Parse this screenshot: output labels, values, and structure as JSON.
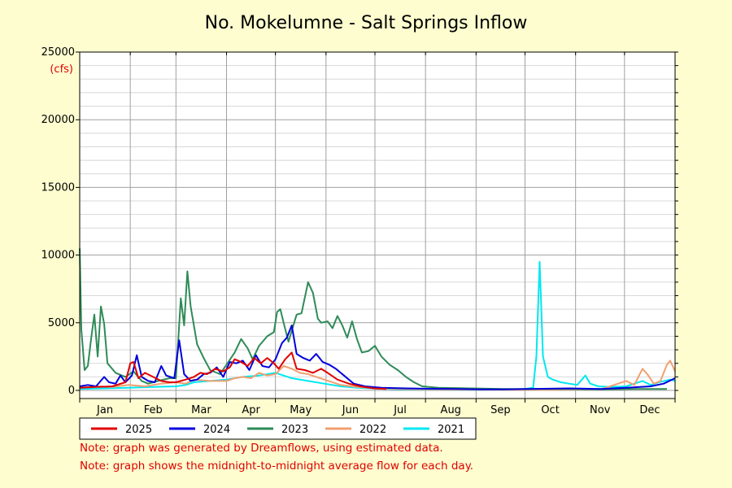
{
  "chart_data": {
    "type": "line",
    "title": "No. Mokelumne - Salt Springs Inflow",
    "ylabel": "(cfs)",
    "xlabel": "",
    "ylim": [
      0,
      25000
    ],
    "xlim": [
      0,
      365
    ],
    "yticks": [
      0,
      5000,
      10000,
      15000,
      20000,
      25000
    ],
    "months": [
      {
        "label": "Jan",
        "start": 0
      },
      {
        "label": "Feb",
        "start": 31
      },
      {
        "label": "Mar",
        "start": 59
      },
      {
        "label": "Apr",
        "start": 90
      },
      {
        "label": "May",
        "start": 120
      },
      {
        "label": "Jun",
        "start": 151
      },
      {
        "label": "Jul",
        "start": 181
      },
      {
        "label": "Aug",
        "start": 212
      },
      {
        "label": "Sep",
        "start": 243
      },
      {
        "label": "Oct",
        "start": 273
      },
      {
        "label": "Nov",
        "start": 304
      },
      {
        "label": "Dec",
        "start": 334
      }
    ],
    "grid": true,
    "legend_position": "bottom",
    "series": [
      {
        "name": "2025",
        "color": "#e00000",
        "points": [
          [
            0,
            200
          ],
          [
            10,
            250
          ],
          [
            20,
            300
          ],
          [
            28,
            600
          ],
          [
            31,
            2000
          ],
          [
            33,
            2100
          ],
          [
            36,
            900
          ],
          [
            40,
            1300
          ],
          [
            45,
            1000
          ],
          [
            50,
            700
          ],
          [
            55,
            600
          ],
          [
            59,
            600
          ],
          [
            65,
            800
          ],
          [
            70,
            1000
          ],
          [
            74,
            1300
          ],
          [
            78,
            1200
          ],
          [
            83,
            1600
          ],
          [
            88,
            1400
          ],
          [
            92,
            1700
          ],
          [
            95,
            2300
          ],
          [
            99,
            2100
          ],
          [
            103,
            1800
          ],
          [
            107,
            2400
          ],
          [
            111,
            2000
          ],
          [
            115,
            2400
          ],
          [
            119,
            2000
          ],
          [
            122,
            1600
          ],
          [
            126,
            2300
          ],
          [
            130,
            2800
          ],
          [
            133,
            1600
          ],
          [
            138,
            1500
          ],
          [
            143,
            1300
          ],
          [
            148,
            1600
          ],
          [
            152,
            1300
          ],
          [
            158,
            800
          ],
          [
            165,
            500
          ],
          [
            172,
            300
          ],
          [
            180,
            150
          ],
          [
            188,
            100
          ]
        ]
      },
      {
        "name": "2024",
        "color": "#0000dd",
        "points": [
          [
            0,
            300
          ],
          [
            5,
            400
          ],
          [
            10,
            300
          ],
          [
            15,
            1000
          ],
          [
            18,
            600
          ],
          [
            22,
            500
          ],
          [
            25,
            1100
          ],
          [
            28,
            600
          ],
          [
            32,
            1100
          ],
          [
            35,
            2600
          ],
          [
            38,
            1000
          ],
          [
            42,
            700
          ],
          [
            46,
            600
          ],
          [
            50,
            1800
          ],
          [
            53,
            1100
          ],
          [
            58,
            900
          ],
          [
            61,
            3700
          ],
          [
            64,
            1200
          ],
          [
            68,
            700
          ],
          [
            72,
            800
          ],
          [
            76,
            1200
          ],
          [
            80,
            1300
          ],
          [
            84,
            1700
          ],
          [
            88,
            1000
          ],
          [
            92,
            2100
          ],
          [
            96,
            2000
          ],
          [
            100,
            2200
          ],
          [
            104,
            1500
          ],
          [
            108,
            2600
          ],
          [
            112,
            1800
          ],
          [
            116,
            1700
          ],
          [
            120,
            2300
          ],
          [
            124,
            3500
          ],
          [
            127,
            3900
          ],
          [
            130,
            4800
          ],
          [
            133,
            2700
          ],
          [
            137,
            2400
          ],
          [
            141,
            2200
          ],
          [
            145,
            2700
          ],
          [
            149,
            2100
          ],
          [
            153,
            1900
          ],
          [
            157,
            1600
          ],
          [
            162,
            1100
          ],
          [
            168,
            500
          ],
          [
            175,
            300
          ],
          [
            185,
            200
          ],
          [
            200,
            150
          ],
          [
            215,
            120
          ],
          [
            230,
            100
          ],
          [
            245,
            80
          ],
          [
            260,
            70
          ],
          [
            275,
            100
          ],
          [
            300,
            150
          ],
          [
            320,
            100
          ],
          [
            335,
            200
          ],
          [
            350,
            300
          ],
          [
            358,
            500
          ],
          [
            365,
            900
          ]
        ]
      },
      {
        "name": "2023",
        "color": "#2e8b57",
        "points": [
          [
            0,
            10500
          ],
          [
            1,
            4500
          ],
          [
            2,
            3000
          ],
          [
            3,
            1500
          ],
          [
            5,
            1800
          ],
          [
            7,
            3800
          ],
          [
            9,
            5600
          ],
          [
            11,
            2500
          ],
          [
            13,
            6200
          ],
          [
            15,
            4900
          ],
          [
            17,
            2000
          ],
          [
            22,
            1300
          ],
          [
            28,
            1000
          ],
          [
            33,
            1400
          ],
          [
            38,
            700
          ],
          [
            42,
            500
          ],
          [
            48,
            700
          ],
          [
            55,
            900
          ],
          [
            59,
            900
          ],
          [
            62,
            6800
          ],
          [
            64,
            4800
          ],
          [
            66,
            8800
          ],
          [
            68,
            6200
          ],
          [
            72,
            3400
          ],
          [
            76,
            2400
          ],
          [
            80,
            1500
          ],
          [
            86,
            1200
          ],
          [
            90,
            1900
          ],
          [
            95,
            2800
          ],
          [
            99,
            3800
          ],
          [
            103,
            3100
          ],
          [
            106,
            2300
          ],
          [
            110,
            3300
          ],
          [
            115,
            4000
          ],
          [
            119,
            4300
          ],
          [
            121,
            5800
          ],
          [
            123,
            6000
          ],
          [
            125,
            5000
          ],
          [
            128,
            3600
          ],
          [
            133,
            5600
          ],
          [
            136,
            5700
          ],
          [
            140,
            8000
          ],
          [
            143,
            7200
          ],
          [
            146,
            5300
          ],
          [
            148,
            5000
          ],
          [
            152,
            5100
          ],
          [
            155,
            4600
          ],
          [
            158,
            5500
          ],
          [
            161,
            4800
          ],
          [
            164,
            3900
          ],
          [
            167,
            5100
          ],
          [
            170,
            3800
          ],
          [
            173,
            2800
          ],
          [
            177,
            2900
          ],
          [
            181,
            3300
          ],
          [
            185,
            2500
          ],
          [
            190,
            1900
          ],
          [
            195,
            1500
          ],
          [
            200,
            1000
          ],
          [
            205,
            600
          ],
          [
            210,
            300
          ],
          [
            220,
            200
          ],
          [
            240,
            150
          ],
          [
            260,
            100
          ],
          [
            280,
            100
          ],
          [
            300,
            100
          ],
          [
            320,
            80
          ],
          [
            340,
            100
          ],
          [
            360,
            100
          ]
        ]
      },
      {
        "name": "2022",
        "color": "#f0a070",
        "points": [
          [
            0,
            200
          ],
          [
            10,
            300
          ],
          [
            20,
            250
          ],
          [
            30,
            400
          ],
          [
            40,
            300
          ],
          [
            50,
            500
          ],
          [
            59,
            600
          ],
          [
            65,
            500
          ],
          [
            70,
            800
          ],
          [
            80,
            700
          ],
          [
            90,
            700
          ],
          [
            95,
            900
          ],
          [
            100,
            1000
          ],
          [
            105,
            900
          ],
          [
            110,
            1300
          ],
          [
            115,
            1100
          ],
          [
            120,
            1200
          ],
          [
            125,
            1800
          ],
          [
            130,
            1600
          ],
          [
            135,
            1300
          ],
          [
            140,
            1200
          ],
          [
            145,
            1000
          ],
          [
            150,
            800
          ],
          [
            160,
            400
          ],
          [
            170,
            250
          ],
          [
            185,
            150
          ],
          [
            200,
            100
          ],
          [
            230,
            60
          ],
          [
            260,
            50
          ],
          [
            290,
            50
          ],
          [
            320,
            100
          ],
          [
            335,
            700
          ],
          [
            340,
            400
          ],
          [
            345,
            1600
          ],
          [
            348,
            1200
          ],
          [
            352,
            500
          ],
          [
            356,
            700
          ],
          [
            360,
            1900
          ],
          [
            362,
            2200
          ],
          [
            365,
            1400
          ]
        ]
      },
      {
        "name": "2021",
        "color": "#00e8f0",
        "points": [
          [
            0,
            100
          ],
          [
            15,
            150
          ],
          [
            30,
            200
          ],
          [
            45,
            250
          ],
          [
            59,
            300
          ],
          [
            65,
            400
          ],
          [
            70,
            600
          ],
          [
            80,
            700
          ],
          [
            90,
            800
          ],
          [
            100,
            1000
          ],
          [
            110,
            1100
          ],
          [
            120,
            1300
          ],
          [
            125,
            1100
          ],
          [
            130,
            900
          ],
          [
            140,
            700
          ],
          [
            150,
            500
          ],
          [
            160,
            300
          ],
          [
            170,
            200
          ],
          [
            185,
            120
          ],
          [
            200,
            80
          ],
          [
            220,
            60
          ],
          [
            240,
            50
          ],
          [
            255,
            50
          ],
          [
            270,
            60
          ],
          [
            278,
            200
          ],
          [
            280,
            2500
          ],
          [
            282,
            9500
          ],
          [
            284,
            2500
          ],
          [
            287,
            1000
          ],
          [
            290,
            800
          ],
          [
            295,
            600
          ],
          [
            300,
            500
          ],
          [
            305,
            400
          ],
          [
            310,
            1100
          ],
          [
            313,
            500
          ],
          [
            318,
            300
          ],
          [
            325,
            250
          ],
          [
            335,
            300
          ],
          [
            345,
            700
          ],
          [
            350,
            400
          ],
          [
            355,
            600
          ],
          [
            362,
            800
          ],
          [
            365,
            700
          ]
        ]
      }
    ]
  },
  "notes": [
    "Note: graph was generated by Dreamflows, using estimated data.",
    "Note: graph shows the midnight-to-midnight average flow for each day."
  ]
}
